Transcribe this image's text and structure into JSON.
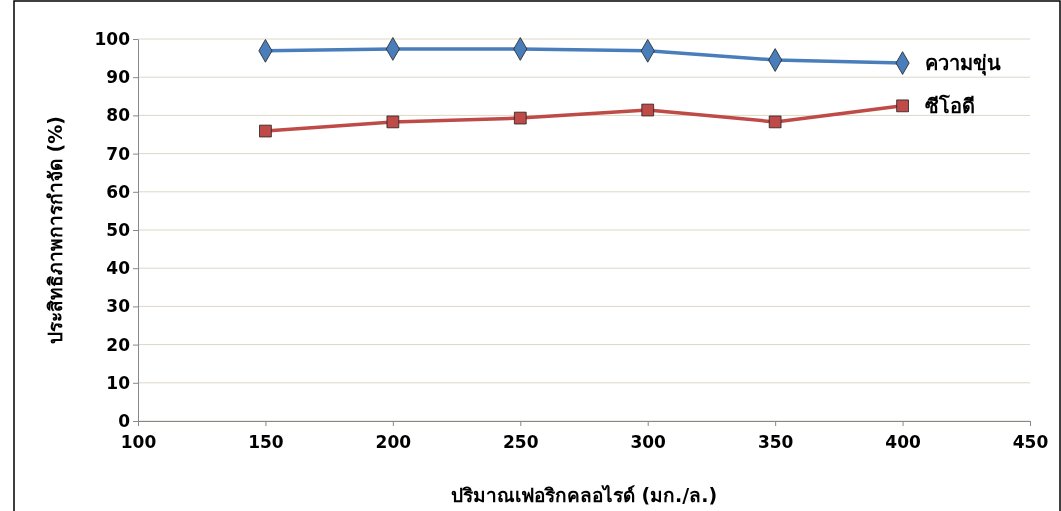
{
  "chart_data": {
    "type": "line",
    "xlabel": "ปริมาณเฟอริกคลอไรด์ (มก./ล.)",
    "ylabel": "ประสิทธิภาพการกำจัด (%)",
    "x": [
      150,
      200,
      250,
      300,
      350,
      400
    ],
    "series": [
      {
        "name": "ความขุ่น",
        "color": "#4a7ebb",
        "marker": "diamond",
        "values": [
          96.9,
          97.4,
          97.4,
          96.9,
          94.5,
          93.7
        ]
      },
      {
        "name": "ซีโอดี",
        "color": "#be4b48",
        "marker": "square",
        "values": [
          75.9,
          78.3,
          79.3,
          81.4,
          78.3,
          82.5
        ]
      }
    ],
    "xlim": [
      100,
      450
    ],
    "xticks": [
      100,
      150,
      200,
      250,
      300,
      350,
      400,
      450
    ],
    "ylim": [
      0,
      100
    ],
    "yticks": [
      0,
      10,
      20,
      30,
      40,
      50,
      60,
      70,
      80,
      90,
      100
    ],
    "grid": "y",
    "legend": false
  }
}
